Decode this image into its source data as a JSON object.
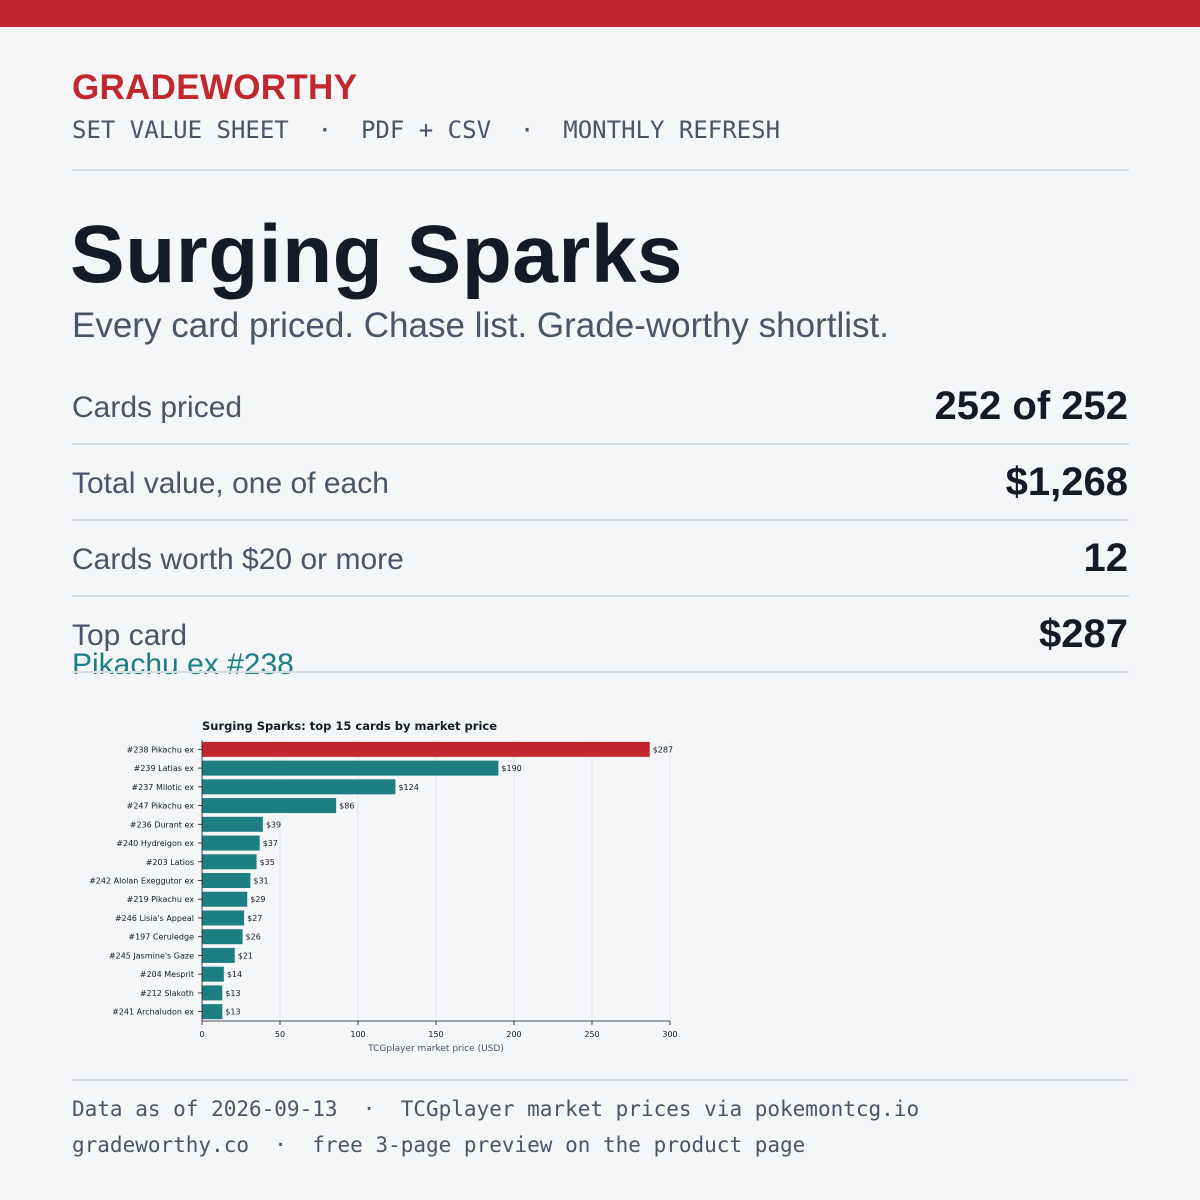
{
  "brand": "GRADEWORTHY",
  "tagline": "SET VALUE SHEET  ·  PDF + CSV  ·  MONTHLY REFRESH",
  "title": "Surging Sparks",
  "subtitle": "Every card priced. Chase list. Grade-worthy shortlist.",
  "stats": [
    {
      "label": "Cards priced",
      "value": "252 of 252"
    },
    {
      "label": "Total value, one of each",
      "value": "$1,268"
    },
    {
      "label": "Cards worth $20 or more",
      "value": "12"
    },
    {
      "label": "Top card",
      "value": "$287",
      "sub": "Pikachu ex #238"
    }
  ],
  "footer": {
    "line1": "Data as of 2026-09-13  ·  TCGplayer market prices via pokemontcg.io",
    "line2": "gradeworthy.co  ·  free 3-page preview on the product page"
  },
  "colors": {
    "accent": "#c1272d",
    "bar": "#1d7f82"
  },
  "chart_data": {
    "type": "bar",
    "orientation": "horizontal",
    "title": "Surging Sparks: top 15 cards by market price",
    "xlabel": "TCGplayer market price (USD)",
    "ylabel": "",
    "xlim": [
      0,
      300
    ],
    "xticks": [
      0,
      50,
      100,
      150,
      200,
      250,
      300
    ],
    "grid": "vertical",
    "categories": [
      "#238 Pikachu ex",
      "#239 Latias ex",
      "#237 Milotic ex",
      "#247 Pikachu ex",
      "#236 Durant ex",
      "#240 Hydreigon ex",
      "#203 Latios",
      "#242 Alolan Exeggutor ex",
      "#219 Pikachu ex",
      "#246 Lisia's Appeal",
      "#197 Ceruledge",
      "#245 Jasmine's Gaze",
      "#204 Mesprit",
      "#212 Slakoth",
      "#241 Archaludon ex"
    ],
    "values": [
      287,
      190,
      124,
      86,
      39,
      37,
      35,
      31,
      29,
      27,
      26,
      21,
      14,
      13,
      13
    ],
    "value_labels": [
      "$287",
      "$190",
      "$124",
      "$86",
      "$39",
      "$37",
      "$35",
      "$31",
      "$29",
      "$27",
      "$26",
      "$21",
      "$14",
      "$13",
      "$13"
    ],
    "highlight_index": 0
  }
}
